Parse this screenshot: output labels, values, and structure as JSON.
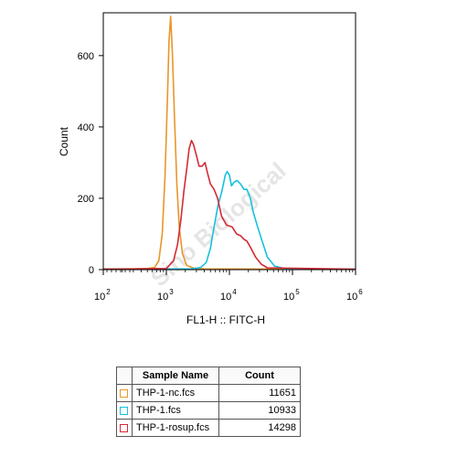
{
  "chart_data": {
    "type": "line",
    "xlabel": "FL1-H :: FITC-H",
    "ylabel": "Count",
    "x_scale": "log",
    "xlim": [
      100,
      1000000
    ],
    "ylim": [
      0,
      720
    ],
    "x_ticks": [
      {
        "value": 100,
        "base": "10",
        "exp": "2"
      },
      {
        "value": 1000,
        "base": "10",
        "exp": "3"
      },
      {
        "value": 10000,
        "base": "10",
        "exp": "4"
      },
      {
        "value": 100000,
        "base": "10",
        "exp": "5"
      },
      {
        "value": 1000000,
        "base": "10",
        "exp": "6"
      }
    ],
    "y_ticks": [
      0,
      200,
      400,
      600
    ],
    "grid": false,
    "series": [
      {
        "name": "THP-1-nc.fcs",
        "color": "#E8962A",
        "x": [
          100,
          300,
          500,
          650,
          760,
          860,
          950,
          1040,
          1100,
          1170,
          1250,
          1350,
          1470,
          1600,
          1800,
          2100,
          2700,
          4000,
          1000000
        ],
        "y": [
          2,
          2,
          3,
          6,
          25,
          100,
          260,
          480,
          640,
          710,
          600,
          420,
          240,
          120,
          45,
          12,
          4,
          2,
          1
        ]
      },
      {
        "name": "THP-1.fcs",
        "color": "#18C0DF",
        "x": [
          100,
          2500,
          3500,
          4300,
          5000,
          5700,
          6600,
          7600,
          8600,
          9200,
          10000,
          10800,
          11800,
          13200,
          15000,
          17000,
          19000,
          21500,
          24000,
          28000,
          33000,
          40000,
          52000,
          80000,
          1000000
        ],
        "y": [
          1,
          2,
          6,
          20,
          60,
          120,
          180,
          220,
          265,
          275,
          265,
          235,
          245,
          250,
          240,
          225,
          225,
          200,
          160,
          120,
          80,
          35,
          10,
          2,
          1
        ]
      },
      {
        "name": "THP-1-rosup.fcs",
        "color": "#D42A35",
        "x": [
          100,
          1000,
          1300,
          1500,
          1700,
          1900,
          2100,
          2300,
          2500,
          2700,
          3000,
          3300,
          3700,
          4100,
          4500,
          5000,
          5700,
          6500,
          7500,
          9000,
          11000,
          13000,
          15000,
          17000,
          19000,
          22000,
          26000,
          32000,
          40000,
          1000000
        ],
        "y": [
          1,
          3,
          25,
          70,
          140,
          220,
          280,
          340,
          362,
          350,
          320,
          290,
          290,
          300,
          270,
          240,
          225,
          200,
          150,
          125,
          120,
          100,
          95,
          85,
          80,
          60,
          35,
          15,
          5,
          1
        ]
      }
    ]
  },
  "watermark": "Sino Biological",
  "legend_table": {
    "headers": {
      "name": "Sample Name",
      "count": "Count"
    },
    "rows": [
      {
        "name": "THP-1-nc.fcs",
        "count": "11651",
        "color": "#E8962A"
      },
      {
        "name": "THP-1.fcs",
        "count": "10933",
        "color": "#18C0DF"
      },
      {
        "name": "THP-1-rosup.fcs",
        "count": "14298",
        "color": "#D42A35"
      }
    ]
  }
}
